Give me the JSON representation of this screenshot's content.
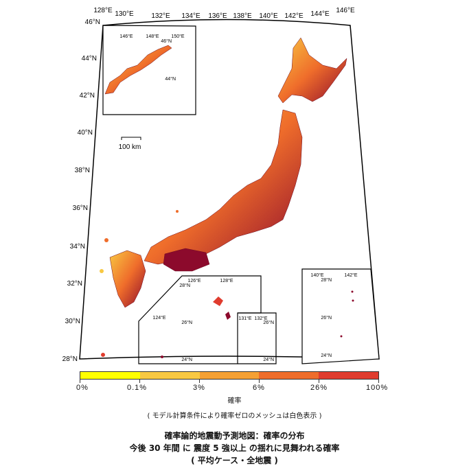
{
  "map": {
    "lon_labels": [
      "128°E",
      "130°E",
      "132°E",
      "134°E",
      "136°E",
      "138°E",
      "140°E",
      "142°E",
      "144°E",
      "146°E"
    ],
    "lat_labels": [
      "46°N",
      "44°N",
      "42°N",
      "40°N",
      "38°N",
      "36°N",
      "34°N",
      "32°N",
      "30°N",
      "28°N"
    ],
    "scale_bar": "100 km",
    "inset_hokkaido": {
      "lon": [
        "146°E",
        "148°E",
        "150°E"
      ],
      "lat": [
        "46°N",
        "44°N"
      ]
    },
    "inset_ryukyu": {
      "lon": [
        "126°E",
        "128°E",
        "124°E"
      ],
      "lat": [
        "28°N",
        "26°N",
        "24°N"
      ]
    },
    "inset_daito": {
      "lon": [
        "131°E",
        "132°E"
      ],
      "lat": [
        "26°N",
        "24°N"
      ]
    },
    "inset_ogasawara": {
      "lon": [
        "140°E",
        "142°E"
      ],
      "lat": [
        "28°N",
        "26°N",
        "24°N"
      ]
    }
  },
  "legend": {
    "colors": [
      "#ffff00",
      "#f8c842",
      "#f5a033",
      "#ef6d2b",
      "#e03c2e",
      "#8c0a2c"
    ],
    "labels": [
      "0%",
      "0.1%",
      "3%",
      "6%",
      "26%",
      "100%"
    ],
    "unit": "確率"
  },
  "note": "( モデル計算条件により確率ゼロのメッシュは白色表示 )",
  "title": {
    "line1": "確率論的地震動予測地図：確率の分布",
    "line2": "今後 30 年間 に 震度 5 強以上 の揺れに見舞われる確率",
    "line3": "( 平均ケース・全地震 )"
  }
}
